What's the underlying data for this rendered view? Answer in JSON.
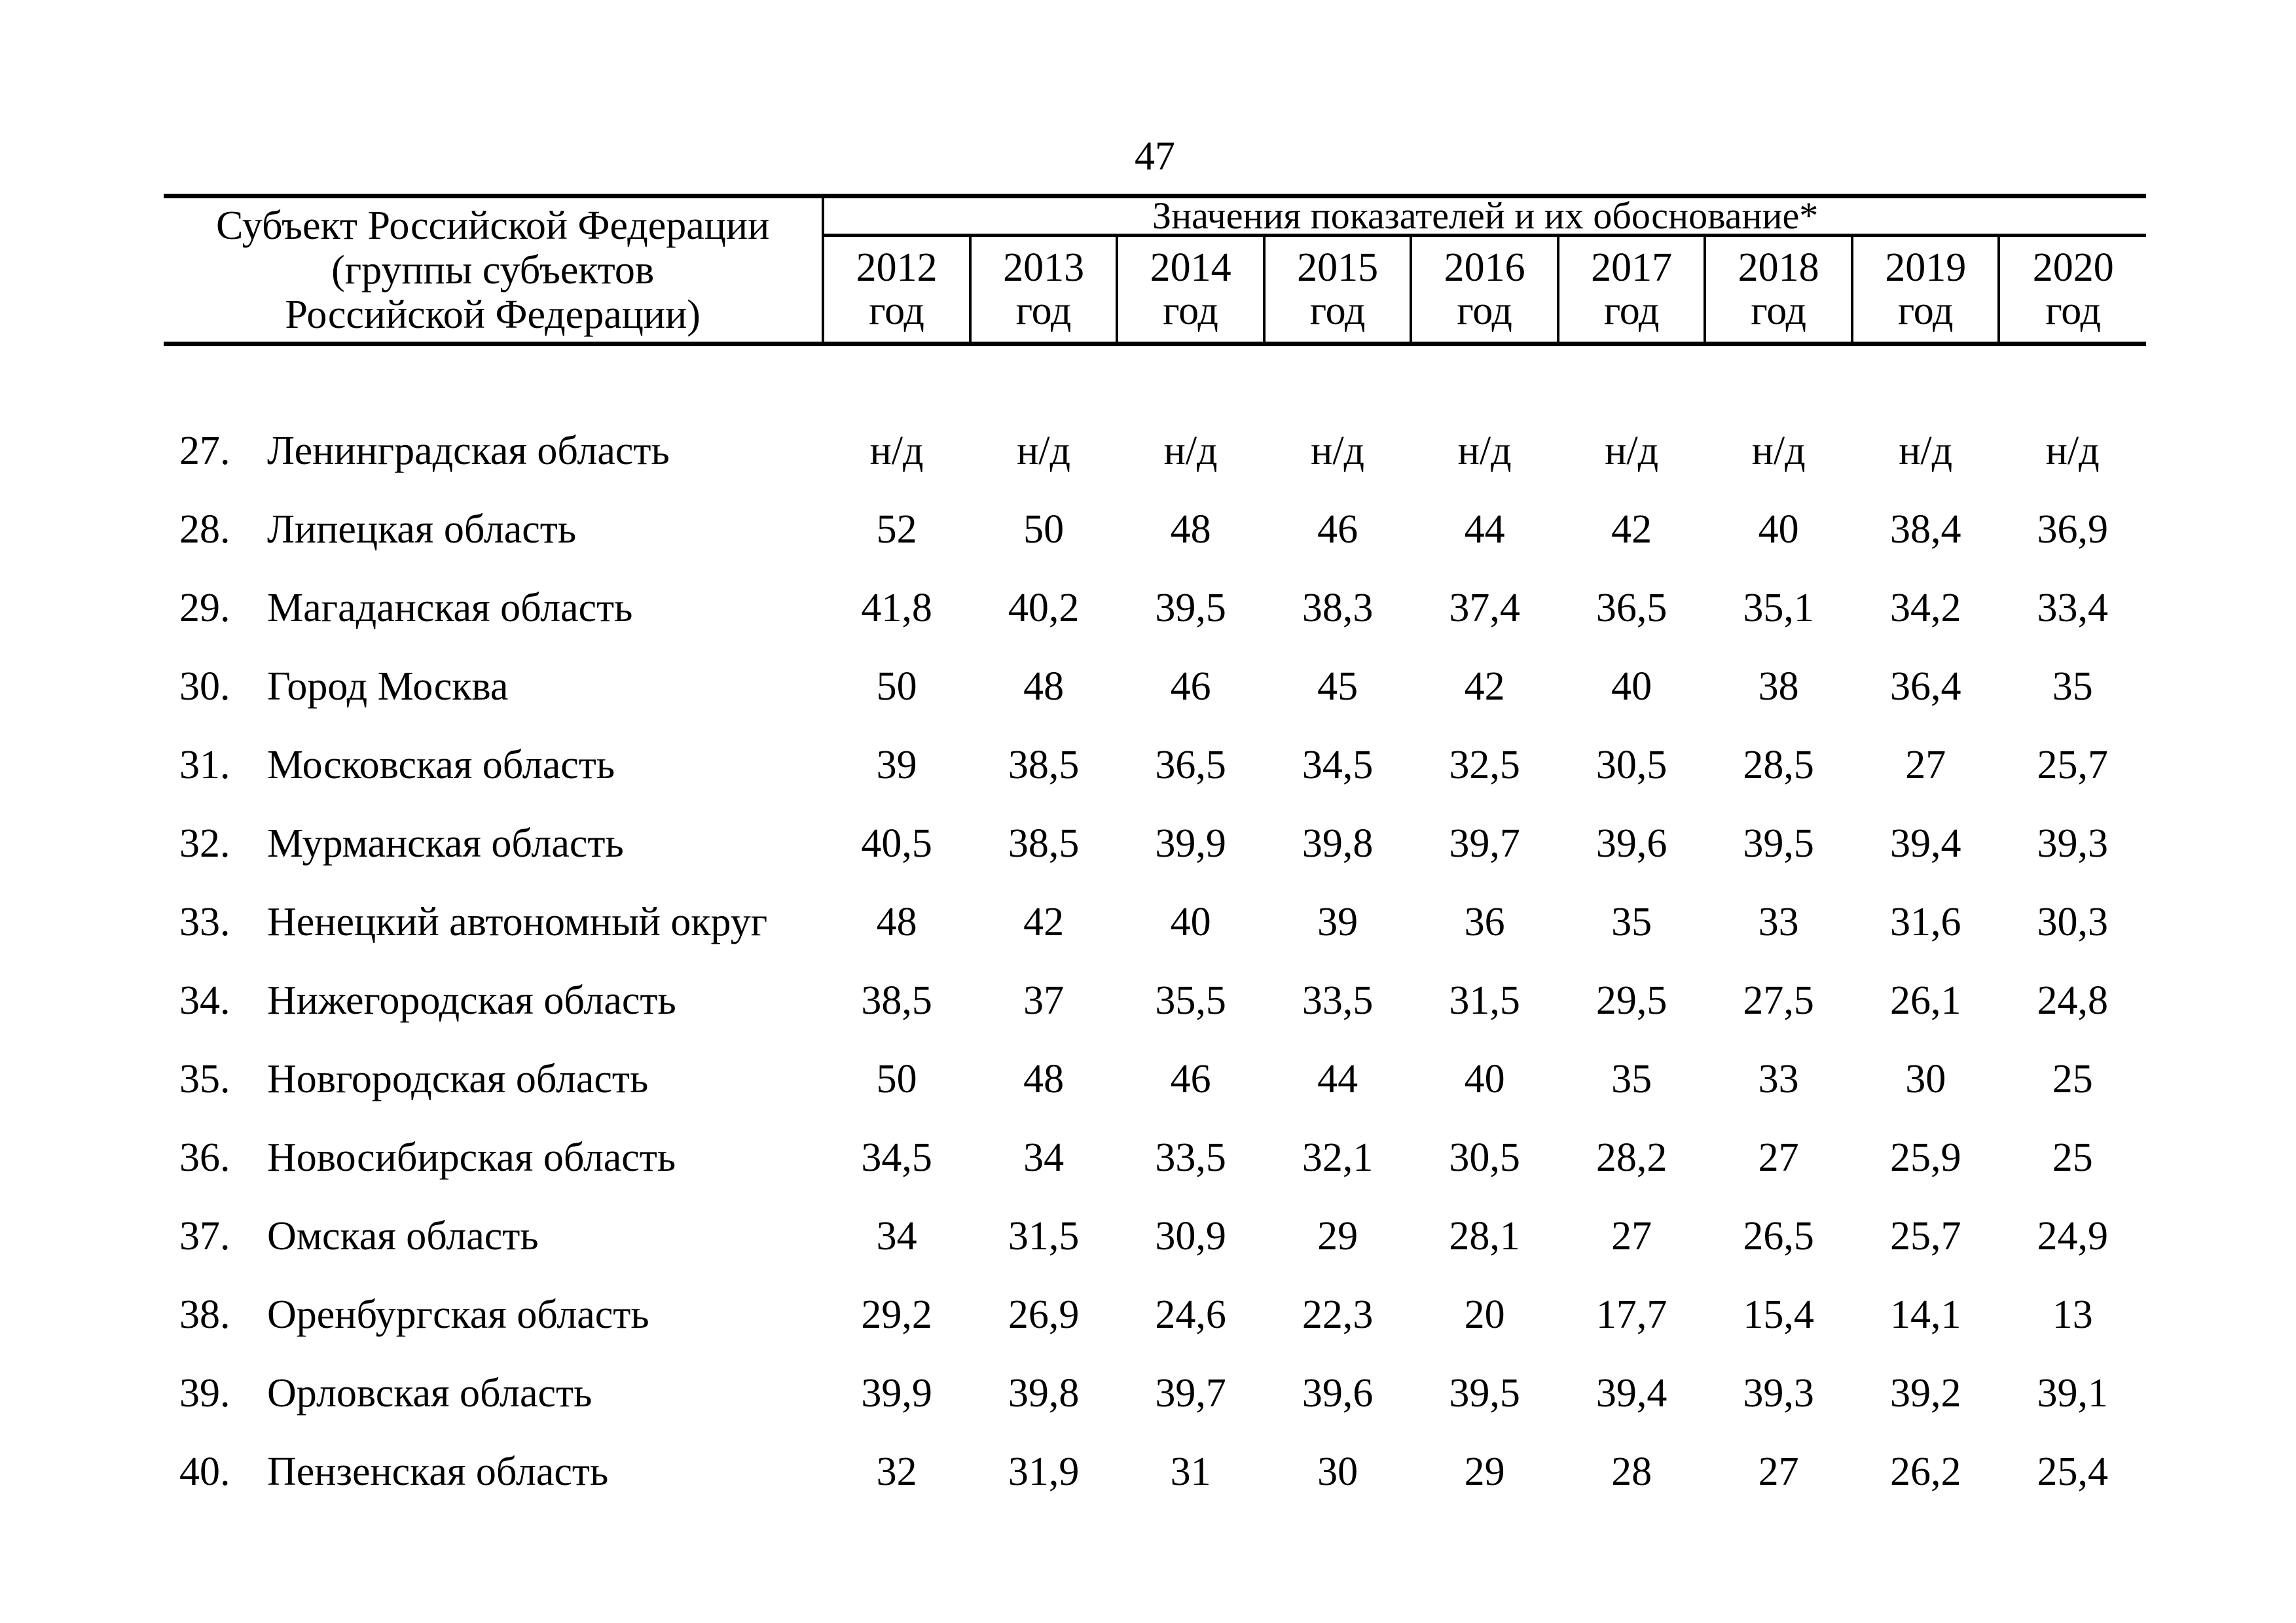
{
  "page": {
    "number": "47"
  },
  "table": {
    "region_header_lines": [
      "Субъект Российской Федерации",
      "(группы субъектов",
      "Российской Федерации)"
    ],
    "values_header": "Значения показателей и их обоснование*",
    "year_word": "год",
    "years": [
      "2012",
      "2013",
      "2014",
      "2015",
      "2016",
      "2017",
      "2018",
      "2019",
      "2020"
    ],
    "rows": [
      {
        "num": "27.",
        "name": "Ленинградская область",
        "values": [
          "н/д",
          "н/д",
          "н/д",
          "н/д",
          "н/д",
          "н/д",
          "н/д",
          "н/д",
          "н/д"
        ]
      },
      {
        "num": "28.",
        "name": "Липецкая область",
        "values": [
          "52",
          "50",
          "48",
          "46",
          "44",
          "42",
          "40",
          "38,4",
          "36,9"
        ]
      },
      {
        "num": "29.",
        "name": "Магаданская область",
        "values": [
          "41,8",
          "40,2",
          "39,5",
          "38,3",
          "37,4",
          "36,5",
          "35,1",
          "34,2",
          "33,4"
        ]
      },
      {
        "num": "30.",
        "name": "Город Москва",
        "values": [
          "50",
          "48",
          "46",
          "45",
          "42",
          "40",
          "38",
          "36,4",
          "35"
        ]
      },
      {
        "num": "31.",
        "name": "Московская область",
        "values": [
          "39",
          "38,5",
          "36,5",
          "34,5",
          "32,5",
          "30,5",
          "28,5",
          "27",
          "25,7"
        ]
      },
      {
        "num": "32.",
        "name": "Мурманская область",
        "values": [
          "40,5",
          "38,5",
          "39,9",
          "39,8",
          "39,7",
          "39,6",
          "39,5",
          "39,4",
          "39,3"
        ]
      },
      {
        "num": "33.",
        "name": "Ненецкий автономный округ",
        "values": [
          "48",
          "42",
          "40",
          "39",
          "36",
          "35",
          "33",
          "31,6",
          "30,3"
        ]
      },
      {
        "num": "34.",
        "name": "Нижегородская область",
        "values": [
          "38,5",
          "37",
          "35,5",
          "33,5",
          "31,5",
          "29,5",
          "27,5",
          "26,1",
          "24,8"
        ]
      },
      {
        "num": "35.",
        "name": "Новгородская область",
        "values": [
          "50",
          "48",
          "46",
          "44",
          "40",
          "35",
          "33",
          "30",
          "25"
        ]
      },
      {
        "num": "36.",
        "name": "Новосибирская область",
        "values": [
          "34,5",
          "34",
          "33,5",
          "32,1",
          "30,5",
          "28,2",
          "27",
          "25,9",
          "25"
        ]
      },
      {
        "num": "37.",
        "name": "Омская область",
        "values": [
          "34",
          "31,5",
          "30,9",
          "29",
          "28,1",
          "27",
          "26,5",
          "25,7",
          "24,9"
        ]
      },
      {
        "num": "38.",
        "name": "Оренбургская область",
        "values": [
          "29,2",
          "26,9",
          "24,6",
          "22,3",
          "20",
          "17,7",
          "15,4",
          "14,1",
          "13"
        ]
      },
      {
        "num": "39.",
        "name": "Орловская область",
        "values": [
          "39,9",
          "39,8",
          "39,7",
          "39,6",
          "39,5",
          "39,4",
          "39,3",
          "39,2",
          "39,1"
        ]
      },
      {
        "num": "40.",
        "name": "Пензенская область",
        "values": [
          "32",
          "31,9",
          "31",
          "30",
          "29",
          "28",
          "27",
          "26,2",
          "25,4"
        ]
      }
    ]
  }
}
